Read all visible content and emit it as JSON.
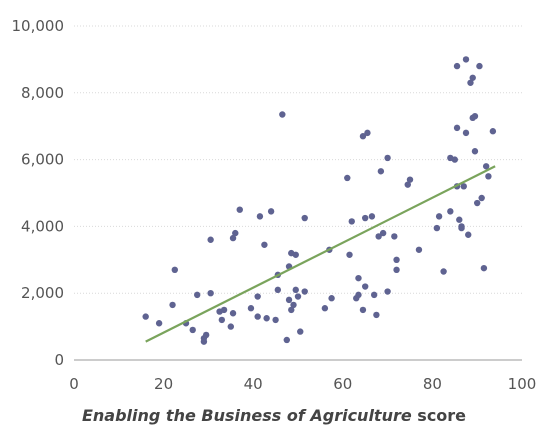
{
  "chart_data": {
    "type": "scatter",
    "title": "",
    "xlabel_italic": "Enabling the Business of Agriculture",
    "xlabel_suffix": " score",
    "ylabel": "",
    "xlim": [
      0,
      100
    ],
    "ylim": [
      0,
      10000
    ],
    "x_ticks": [
      0,
      20,
      40,
      60,
      80,
      100
    ],
    "y_ticks": [
      0,
      2000,
      4000,
      6000,
      8000,
      10000
    ],
    "x_tick_labels": [
      "0",
      "20",
      "40",
      "60",
      "80",
      "100"
    ],
    "y_tick_labels": [
      "0",
      "2,000",
      "4,000",
      "6,000",
      "8,000",
      "10,000"
    ],
    "grid": "horizontal",
    "colors": {
      "points": "#5f6391",
      "trend": "#7aa45c",
      "grid": "#d9d9d9"
    },
    "trendline": {
      "x": [
        16,
        94
      ],
      "y": [
        550,
        5800
      ]
    },
    "points": [
      [
        16,
        1300
      ],
      [
        19,
        1100
      ],
      [
        22,
        1650
      ],
      [
        22.5,
        2700
      ],
      [
        25,
        1100
      ],
      [
        26.5,
        900
      ],
      [
        27.5,
        1950
      ],
      [
        29,
        550
      ],
      [
        29,
        650
      ],
      [
        29.5,
        750
      ],
      [
        30.5,
        3600
      ],
      [
        30.5,
        2000
      ],
      [
        32.5,
        1450
      ],
      [
        33,
        1200
      ],
      [
        33.5,
        1500
      ],
      [
        35,
        1000
      ],
      [
        35.5,
        1400
      ],
      [
        35.5,
        3650
      ],
      [
        36,
        3800
      ],
      [
        37,
        4500
      ],
      [
        39.5,
        1550
      ],
      [
        41,
        1900
      ],
      [
        41,
        1300
      ],
      [
        41.5,
        4300
      ],
      [
        42.5,
        3450
      ],
      [
        43,
        1250
      ],
      [
        44,
        4450
      ],
      [
        45,
        1200
      ],
      [
        45.5,
        2100
      ],
      [
        45.5,
        2550
      ],
      [
        46.5,
        7350
      ],
      [
        47.5,
        600
      ],
      [
        48,
        1800
      ],
      [
        48,
        2800
      ],
      [
        48.5,
        3200
      ],
      [
        48.5,
        1500
      ],
      [
        49,
        1650
      ],
      [
        49.5,
        2100
      ],
      [
        49.5,
        3150
      ],
      [
        50,
        1900
      ],
      [
        50.5,
        850
      ],
      [
        51.5,
        4250
      ],
      [
        51.5,
        2050
      ],
      [
        56,
        1550
      ],
      [
        57,
        3300
      ],
      [
        57.5,
        1850
      ],
      [
        61,
        5450
      ],
      [
        61.5,
        3150
      ],
      [
        62,
        4150
      ],
      [
        63,
        1850
      ],
      [
        63.5,
        1950
      ],
      [
        63.5,
        2450
      ],
      [
        64.5,
        6700
      ],
      [
        64.5,
        1500
      ],
      [
        65,
        4250
      ],
      [
        65,
        2200
      ],
      [
        65.5,
        6800
      ],
      [
        66.5,
        4300
      ],
      [
        67,
        1950
      ],
      [
        67.5,
        1350
      ],
      [
        68,
        3700
      ],
      [
        68.5,
        5650
      ],
      [
        69,
        3800
      ],
      [
        70,
        2050
      ],
      [
        70,
        6050
      ],
      [
        71.5,
        3700
      ],
      [
        72,
        3000
      ],
      [
        72,
        2700
      ],
      [
        74.5,
        5250
      ],
      [
        75,
        5400
      ],
      [
        77,
        3300
      ],
      [
        81,
        3950
      ],
      [
        81.5,
        4300
      ],
      [
        82.5,
        2650
      ],
      [
        84,
        4450
      ],
      [
        84,
        6050
      ],
      [
        85,
        6000
      ],
      [
        85.5,
        8800
      ],
      [
        85.5,
        5200
      ],
      [
        85.5,
        6950
      ],
      [
        86,
        4200
      ],
      [
        86.5,
        4000
      ],
      [
        86.5,
        3950
      ],
      [
        87,
        5200
      ],
      [
        87.5,
        9000
      ],
      [
        87.5,
        6800
      ],
      [
        88,
        3750
      ],
      [
        88.5,
        8300
      ],
      [
        89,
        8450
      ],
      [
        89,
        7250
      ],
      [
        89.5,
        7300
      ],
      [
        89.5,
        6250
      ],
      [
        90,
        4700
      ],
      [
        90.5,
        8800
      ],
      [
        91,
        4850
      ],
      [
        91.5,
        2750
      ],
      [
        92,
        5800
      ],
      [
        92.5,
        5500
      ],
      [
        93.5,
        6850
      ]
    ]
  }
}
